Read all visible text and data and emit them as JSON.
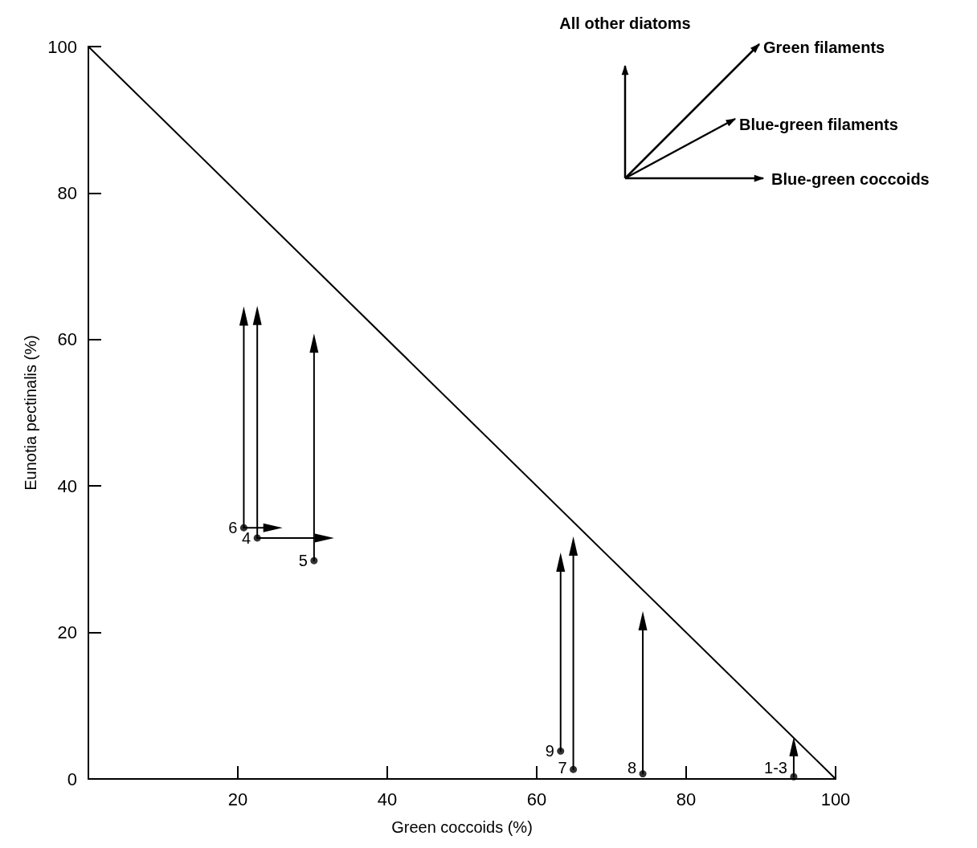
{
  "chart_data": {
    "type": "scatter",
    "xlabel": "Green coccoids (%)",
    "ylabel": "Eunotia pectinalis (%)",
    "xlim": [
      0,
      100
    ],
    "ylim": [
      0,
      100
    ],
    "xticks": [
      20,
      40,
      60,
      80,
      100
    ],
    "yticks": [
      0,
      20,
      40,
      60,
      80,
      100
    ],
    "grid": false,
    "annotations": [
      "All other diatoms",
      "Green filaments",
      "Blue-green filaments",
      "Blue-green coccoids",
      {
        "text": "6",
        "x": 20.8,
        "y": 34.3
      },
      {
        "text": "4",
        "x": 22.6,
        "y": 32.9
      },
      {
        "text": "5",
        "x": 30.2,
        "y": 29.8
      },
      {
        "text": "9",
        "x": 63.2,
        "y": 3.8
      },
      {
        "text": "7",
        "x": 64.9,
        "y": 1.3
      },
      {
        "text": "8",
        "x": 74.2,
        "y": 0.7
      },
      {
        "text": "1-3",
        "x": 94.4,
        "y": 0.3
      }
    ],
    "series": [
      {
        "type": "line",
        "marker": "none",
        "color": "#000000",
        "x": [
          0,
          100
        ],
        "values": [
          100,
          0
        ]
      },
      {
        "type": "line",
        "marker": "triangle",
        "color": "#000000",
        "x": [
          20.8,
          20.8
        ],
        "values": [
          34.3,
          63.2
        ]
      },
      {
        "type": "line",
        "marker": "triangle",
        "color": "#000000",
        "x": [
          20.8,
          24.7
        ],
        "values": [
          34.3,
          34.3
        ]
      },
      {
        "type": "line",
        "marker": "triangle",
        "color": "#000000",
        "x": [
          22.6,
          22.6
        ],
        "values": [
          32.9,
          63.3
        ]
      },
      {
        "type": "line",
        "marker": "triangle",
        "color": "#000000",
        "x": [
          22.6,
          31.6
        ],
        "values": [
          32.9,
          32.9
        ]
      },
      {
        "type": "line",
        "marker": "triangle",
        "color": "#000000",
        "x": [
          30.2,
          30.2
        ],
        "values": [
          29.8,
          59.5
        ]
      },
      {
        "type": "line",
        "marker": "triangle",
        "color": "#000000",
        "x": [
          63.2,
          63.2
        ],
        "values": [
          3.8,
          29.6
        ]
      },
      {
        "type": "line",
        "marker": "triangle",
        "color": "#000000",
        "x": [
          64.9,
          64.9
        ],
        "values": [
          1.3,
          31.8
        ]
      },
      {
        "type": "line",
        "marker": "triangle",
        "color": "#000000",
        "x": [
          74.2,
          74.2
        ],
        "values": [
          0.7,
          21.6
        ]
      },
      {
        "type": "line",
        "marker": "triangle",
        "color": "#000000",
        "x": [
          94.4,
          94.4
        ],
        "values": [
          0.3,
          4.4
        ]
      },
      {
        "marker": "circle",
        "color": "#000000",
        "x": [
          20.8,
          22.6,
          30.2,
          63.2,
          64.9,
          74.2,
          94.4
        ],
        "values": [
          34.3,
          32.9,
          29.8,
          3.8,
          1.3,
          0.7,
          0.3
        ]
      }
    ]
  }
}
